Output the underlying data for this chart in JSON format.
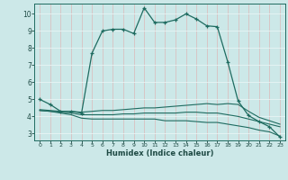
{
  "title": "",
  "xlabel": "Humidex (Indice chaleur)",
  "bg_color": "#cce8e8",
  "line_color": "#1e6b60",
  "grid_color_v": "#ddb8b8",
  "grid_color_h": "#e8f4f4",
  "xlim": [
    -0.5,
    23.5
  ],
  "ylim": [
    2.6,
    10.6
  ],
  "yticks": [
    3,
    4,
    5,
    6,
    7,
    8,
    9,
    10
  ],
  "xticks": [
    0,
    1,
    2,
    3,
    4,
    5,
    6,
    7,
    8,
    9,
    10,
    11,
    12,
    13,
    14,
    15,
    16,
    17,
    18,
    19,
    20,
    21,
    22,
    23
  ],
  "line1_x": [
    0,
    1,
    2,
    3,
    4,
    5,
    6,
    7,
    8,
    9,
    10,
    11,
    12,
    13,
    14,
    15,
    16,
    17,
    18,
    19,
    20,
    21,
    22,
    23
  ],
  "line1_y": [
    5.0,
    4.7,
    4.3,
    4.3,
    4.2,
    7.7,
    9.0,
    9.1,
    9.1,
    8.85,
    10.35,
    9.5,
    9.5,
    9.65,
    10.0,
    9.7,
    9.3,
    9.25,
    7.2,
    4.9,
    4.05,
    3.7,
    3.4,
    2.8
  ],
  "line2_x": [
    0,
    1,
    2,
    3,
    4,
    5,
    6,
    7,
    8,
    9,
    10,
    11,
    12,
    13,
    14,
    15,
    16,
    17,
    18,
    19,
    20,
    21,
    22,
    23
  ],
  "line2_y": [
    4.4,
    4.35,
    4.3,
    4.3,
    4.25,
    4.3,
    4.35,
    4.35,
    4.4,
    4.45,
    4.5,
    4.5,
    4.55,
    4.6,
    4.65,
    4.7,
    4.75,
    4.7,
    4.75,
    4.7,
    4.3,
    3.95,
    3.75,
    3.55
  ],
  "line3_x": [
    0,
    1,
    2,
    3,
    4,
    5,
    6,
    7,
    8,
    9,
    10,
    11,
    12,
    13,
    14,
    15,
    16,
    17,
    18,
    19,
    20,
    21,
    22,
    23
  ],
  "line3_y": [
    4.35,
    4.3,
    4.25,
    4.2,
    4.1,
    4.1,
    4.1,
    4.1,
    4.15,
    4.15,
    4.2,
    4.2,
    4.2,
    4.2,
    4.25,
    4.25,
    4.2,
    4.2,
    4.1,
    4.0,
    3.85,
    3.7,
    3.55,
    3.4
  ],
  "line4_x": [
    0,
    1,
    2,
    3,
    4,
    5,
    6,
    7,
    8,
    9,
    10,
    11,
    12,
    13,
    14,
    15,
    16,
    17,
    18,
    19,
    20,
    21,
    22,
    23
  ],
  "line4_y": [
    4.35,
    4.3,
    4.2,
    4.1,
    3.9,
    3.85,
    3.85,
    3.85,
    3.85,
    3.85,
    3.85,
    3.85,
    3.75,
    3.75,
    3.75,
    3.7,
    3.65,
    3.65,
    3.55,
    3.45,
    3.35,
    3.2,
    3.1,
    2.85
  ]
}
